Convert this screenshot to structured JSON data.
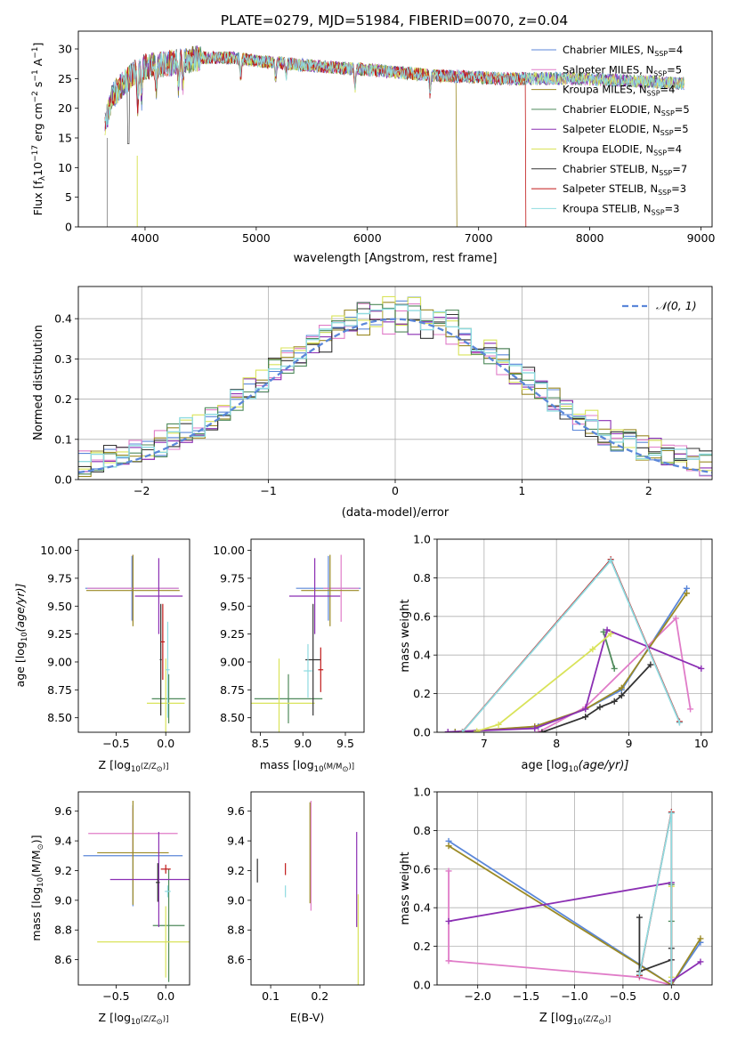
{
  "figure_title": "PLATE=0279, MJD=51984, FIBERID=0070, z=0.04",
  "series_styles": [
    {
      "label": "Chabrier MILES, N",
      "sub": "SSP",
      "n": "=4",
      "color": "#5b87d9"
    },
    {
      "label": "Salpeter MILES, N",
      "sub": "SSP",
      "n": "=5",
      "color": "#e07cc8"
    },
    {
      "label": "Kroupa MILES, N",
      "sub": "SSP",
      "n": "=4",
      "color": "#9b8a25"
    },
    {
      "label": "Chabrier ELODIE, N",
      "sub": "SSP",
      "n": "=5",
      "color": "#4f8a5b"
    },
    {
      "label": "Salpeter ELODIE, N",
      "sub": "SSP",
      "n": "=5",
      "color": "#8b2fb3"
    },
    {
      "label": "Kroupa ELODIE, N",
      "sub": "SSP",
      "n": "=4",
      "color": "#d9e35a"
    },
    {
      "label": "Chabrier STELIB, N",
      "sub": "SSP",
      "n": "=7",
      "color": "#333333"
    },
    {
      "label": "Salpeter STELIB, N",
      "sub": "SSP",
      "n": "=3",
      "color": "#c01818"
    },
    {
      "label": "Kroupa STELIB, N",
      "sub": "SSP",
      "n": "=3",
      "color": "#8fdbe0"
    }
  ],
  "chart_data": [
    {
      "id": "spectrum",
      "type": "line",
      "xlabel": "wavelength [Angstrom, rest frame]",
      "ylabel_main": "Flux [f",
      "ylabel_sub": "λ",
      "ylabel_rest": "10",
      "ylabel_exp1": "−17",
      "ylabel_tail": " erg cm",
      "ylabel_exp2": "−2",
      "ylabel_tail2": " s",
      "ylabel_exp3": "−1",
      "ylabel_tail3": " A",
      "ylabel_exp4": "−1",
      "ylabel_end": "]",
      "xlim": [
        3400,
        9100
      ],
      "ylim": [
        0,
        33
      ],
      "xticks": [
        4000,
        5000,
        6000,
        7000,
        8000,
        9000
      ],
      "yticks": [
        0,
        5,
        10,
        15,
        20,
        25,
        30
      ],
      "grid": false,
      "legend": "right",
      "continuum": {
        "x": [
          3640,
          3700,
          3800,
          3900,
          4000,
          4200,
          4500,
          4800,
          5000,
          5300,
          5600,
          6000,
          6300,
          6600,
          6900,
          7200,
          7500,
          7800,
          8100,
          8400,
          8800
        ],
        "y": [
          17,
          22,
          24,
          26,
          27,
          27.5,
          28.5,
          28.5,
          28,
          27.5,
          27,
          26.5,
          26,
          25.5,
          25.3,
          25,
          25,
          25,
          24.8,
          24.6,
          24.2
        ]
      }
    },
    {
      "id": "residuals",
      "type": "step",
      "xlabel": "(data-model)/error",
      "ylabel": "Normed distribution",
      "xlim": [
        -2.5,
        2.5
      ],
      "ylim": [
        0,
        0.48
      ],
      "xticks": [
        -2,
        -1,
        0,
        1,
        2
      ],
      "yticks": [
        0.0,
        0.1,
        0.2,
        0.3,
        0.4
      ],
      "grid": true,
      "legend": "top-right",
      "gaussian_label": "𝒩(0, 1)"
    },
    {
      "id": "age_vs_Z",
      "type": "errorbar",
      "xlabel_a": "Z [log",
      "xlabel_b": "10",
      "xlabel_c": "(Z/Z",
      "xlabel_d": "⊙",
      "xlabel_e": ")]",
      "ylabel_a": "age  [log",
      "ylabel_b": "10",
      "ylabel_c": "(age/yr)]",
      "xlim": [
        -0.88,
        0.24
      ],
      "ylim": [
        8.37,
        10.1
      ],
      "xticks": [
        -0.5,
        0.0
      ],
      "yticks": [
        8.5,
        8.75,
        9.0,
        9.25,
        9.5,
        9.75,
        10.0
      ],
      "points": [
        {
          "x": -0.34,
          "xerr": 0.47,
          "y": 9.66,
          "yerr": 0.29
        },
        {
          "x": -0.33,
          "xerr": 0.46,
          "y": 9.66,
          "yerr": 0.3
        },
        {
          "x": -0.33,
          "xerr": 0.47,
          "y": 9.64,
          "yerr": 0.32
        },
        {
          "x": 0.03,
          "xerr": 0.17,
          "y": 8.67,
          "yerr": 0.22
        },
        {
          "x": -0.07,
          "xerr": 0.24,
          "y": 9.59,
          "yerr": 0.34
        },
        {
          "x": 0.0,
          "xerr": 0.19,
          "y": 8.63,
          "yerr": 0.4
        },
        {
          "x": -0.05,
          "xerr": 0.01,
          "y": 9.02,
          "yerr": 0.5
        },
        {
          "x": -0.03,
          "xerr": 0.02,
          "y": 9.18,
          "yerr": 0.34
        },
        {
          "x": 0.02,
          "xerr": 0.02,
          "y": 8.93,
          "yerr": 0.43
        }
      ]
    },
    {
      "id": "age_vs_mass",
      "type": "errorbar",
      "xlabel_a": "mass [log",
      "xlabel_b": "10",
      "xlabel_c": "(M/M",
      "xlabel_d": "⊙",
      "xlabel_e": ")]",
      "xlim": [
        8.39,
        9.72
      ],
      "ylim": [
        8.37,
        10.1
      ],
      "xticks": [
        8.5,
        9.0,
        9.5
      ],
      "yticks": [
        8.5,
        8.75,
        9.0,
        9.25,
        9.5,
        9.75,
        10.0
      ],
      "points": [
        {
          "x": 9.3,
          "xerr": 0.38,
          "y": 9.66,
          "yerr": 0.29
        },
        {
          "x": 9.45,
          "xerr": 0.21,
          "y": 9.66,
          "yerr": 0.3
        },
        {
          "x": 9.32,
          "xerr": 0.34,
          "y": 9.64,
          "yerr": 0.32
        },
        {
          "x": 8.83,
          "xerr": 0.4,
          "y": 8.67,
          "yerr": 0.22
        },
        {
          "x": 9.14,
          "xerr": 0.3,
          "y": 9.59,
          "yerr": 0.34
        },
        {
          "x": 8.72,
          "xerr": 0.42,
          "y": 8.63,
          "yerr": 0.4
        },
        {
          "x": 9.12,
          "xerr": 0.09,
          "y": 9.02,
          "yerr": 0.5
        },
        {
          "x": 9.21,
          "xerr": 0.03,
          "y": 8.93,
          "yerr": 0.2
        },
        {
          "x": 9.06,
          "xerr": 0.05,
          "y": 8.92,
          "yerr": 0.24
        }
      ]
    },
    {
      "id": "mass_weight_vs_age",
      "type": "line",
      "xlabel_a": "age  [log",
      "xlabel_b": "10",
      "xlabel_c": "(age/yr)]",
      "ylabel": "mass weight",
      "xlim": [
        6.35,
        10.15
      ],
      "ylim": [
        0,
        1.0
      ],
      "xticks": [
        7,
        8,
        9,
        10
      ],
      "yticks": [
        0.0,
        0.2,
        0.4,
        0.6,
        0.8,
        1.0
      ],
      "grid": true,
      "series": [
        {
          "x": [
            6.6,
            7.75,
            8.4,
            8.9,
            9.8
          ],
          "y": [
            0.002,
            0.03,
            0.12,
            0.22,
            0.745
          ]
        },
        {
          "x": [
            7.75,
            8.4,
            9.65,
            9.85
          ],
          "y": [
            0.0,
            0.13,
            0.59,
            0.12
          ]
        },
        {
          "x": [
            6.6,
            7.7,
            8.4,
            8.9,
            9.8
          ],
          "y": [
            0.002,
            0.03,
            0.12,
            0.23,
            0.72
          ]
        },
        {
          "x": [
            8.65,
            8.8
          ],
          "y": [
            0.52,
            0.33
          ]
        },
        {
          "x": [
            6.5,
            7.7,
            8.4,
            8.7,
            10.0
          ],
          "y": [
            0.002,
            0.02,
            0.12,
            0.53,
            0.33
          ]
        },
        {
          "x": [
            6.9,
            7.2,
            8.5,
            8.75
          ],
          "y": [
            0.005,
            0.04,
            0.43,
            0.51
          ]
        },
        {
          "x": [
            7.8,
            8.4,
            8.6,
            8.8,
            8.9,
            9.3
          ],
          "y": [
            0.0,
            0.08,
            0.13,
            0.16,
            0.19,
            0.35
          ]
        },
        {
          "x": [
            6.7,
            8.75,
            9.7
          ],
          "y": [
            0.002,
            0.895,
            0.055
          ]
        },
        {
          "x": [
            6.7,
            8.75,
            9.7
          ],
          "y": [
            0.0,
            0.89,
            0.05
          ]
        }
      ]
    },
    {
      "id": "mass_vs_Z",
      "type": "errorbar",
      "xlabel_a": "Z [log",
      "xlabel_b": "10",
      "xlabel_c": "(Z/Z",
      "xlabel_d": "⊙",
      "xlabel_e": ")]",
      "ylabel_a": "mass [log",
      "ylabel_b": "10",
      "ylabel_c": "(M/M",
      "ylabel_d": "⊙",
      "ylabel_e": ")]",
      "xlim": [
        -0.88,
        0.24
      ],
      "ylim": [
        8.43,
        9.73
      ],
      "xticks": [
        -0.5,
        0.0
      ],
      "yticks": [
        8.6,
        8.8,
        9.0,
        9.2,
        9.4,
        9.6
      ],
      "points": [
        {
          "x": -0.33,
          "xerr": 0.5,
          "y": 9.3,
          "yerr": 0.34
        },
        {
          "x": -0.33,
          "xerr": 0.45,
          "y": 9.45,
          "yerr": 0.17
        },
        {
          "x": -0.33,
          "xerr": 0.36,
          "y": 9.32,
          "yerr": 0.35
        },
        {
          "x": 0.03,
          "xerr": 0.16,
          "y": 8.83,
          "yerr": 0.38
        },
        {
          "x": -0.07,
          "xerr": 0.49,
          "y": 9.14,
          "yerr": 0.32
        },
        {
          "x": 0.0,
          "xerr": 0.69,
          "y": 8.72,
          "yerr": 0.24
        },
        {
          "x": -0.08,
          "xerr": 0.02,
          "y": 9.12,
          "yerr": 0.13
        },
        {
          "x": 0.0,
          "xerr": 0.05,
          "y": 9.21,
          "yerr": 0.03
        },
        {
          "x": 0.02,
          "xerr": 0.03,
          "y": 9.06,
          "yerr": 0.04
        }
      ]
    },
    {
      "id": "mass_vs_ebv",
      "type": "errorbar",
      "xlabel": "E(B-V)",
      "xlim": [
        0.06,
        0.29
      ],
      "ylim": [
        8.43,
        9.73
      ],
      "xticks": [
        0.1,
        0.2
      ],
      "yticks": [
        8.6,
        8.8,
        9.0,
        9.2,
        9.4,
        9.6
      ],
      "points": [
        {
          "x": 0.182,
          "yerr": 0.37,
          "y": 9.3,
          "ci": 1
        },
        {
          "x": 0.18,
          "yerr": 0.34,
          "y": 9.32,
          "ci": 2
        },
        {
          "x": 0.275,
          "yerr": 0.32,
          "y": 9.14,
          "ci": 4
        },
        {
          "x": 0.278,
          "yerr": 0.32,
          "y": 8.72,
          "ci": 5
        },
        {
          "x": 0.073,
          "yerr": 0.08,
          "y": 9.2,
          "ci": 6
        },
        {
          "x": 0.13,
          "yerr": 0.04,
          "y": 9.21,
          "ci": 7
        },
        {
          "x": 0.13,
          "yerr": 0.04,
          "y": 9.06,
          "ci": 8
        }
      ]
    },
    {
      "id": "mass_weight_vs_Z",
      "type": "line",
      "xlabel_a": "Z [log",
      "xlabel_b": "10",
      "xlabel_c": "(Z/Z",
      "xlabel_d": "⊙",
      "xlabel_e": ")]",
      "ylabel": "mass weight",
      "xlim": [
        -2.42,
        0.42
      ],
      "ylim": [
        0,
        1.0
      ],
      "xticks": [
        -2.0,
        -1.5,
        -1.0,
        -0.5,
        0.0
      ],
      "yticks": [
        0.0,
        0.2,
        0.4,
        0.6,
        0.8,
        1.0
      ],
      "grid": true,
      "series": [
        {
          "x": [
            -2.3,
            0.0,
            0.3
          ],
          "y": [
            0.745,
            0.0,
            0.22
          ]
        },
        {
          "x": [
            -2.3,
            -2.3,
            -0.33,
            0.0,
            0.0
          ],
          "y": [
            0.59,
            0.125,
            0.04,
            0.0,
            0.13
          ]
        },
        {
          "x": [
            -2.3,
            0.0,
            0.3
          ],
          "y": [
            0.72,
            0.0,
            0.24
          ]
        },
        {
          "x": [
            0.0,
            0.0
          ],
          "y": [
            0.33,
            0.52
          ]
        },
        {
          "x": [
            -2.3,
            0.0,
            0.0,
            0.3
          ],
          "y": [
            0.33,
            0.53,
            0.02,
            0.12
          ]
        },
        {
          "x": [
            0.0,
            0.0
          ],
          "y": [
            0.04,
            0.51
          ]
        },
        {
          "x": [
            -0.33,
            -0.33,
            0.0,
            0.0
          ],
          "y": [
            0.35,
            0.07,
            0.13,
            0.19
          ]
        },
        {
          "x": [
            -0.33,
            0.0,
            0.0
          ],
          "y": [
            0.05,
            0.895,
            0.002
          ]
        },
        {
          "x": [
            -0.33,
            0.0,
            0.0
          ],
          "y": [
            0.055,
            0.89,
            0.0
          ]
        }
      ]
    }
  ]
}
